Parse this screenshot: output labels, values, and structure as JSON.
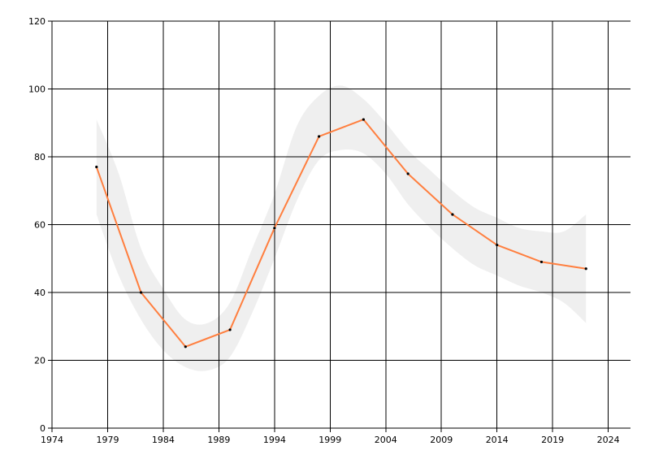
{
  "chart_data": {
    "type": "line",
    "title": "",
    "xlabel": "",
    "ylabel": "",
    "xlim": [
      1974,
      2026
    ],
    "ylim": [
      0,
      120
    ],
    "x_ticks": [
      1974,
      1979,
      1984,
      1989,
      1994,
      1999,
      2004,
      2009,
      2014,
      2019,
      2024
    ],
    "x_tick_labels": [
      "1974",
      "1979",
      "1984",
      "1989",
      "1994",
      "1999",
      "2004",
      "2009",
      "2014",
      "2019",
      "2024"
    ],
    "y_ticks": [
      0,
      20,
      40,
      60,
      80,
      100,
      120
    ],
    "y_tick_labels": [
      "0",
      "20",
      "40",
      "60",
      "80",
      "100",
      "120"
    ],
    "grid": true,
    "legend": "none",
    "series": [
      {
        "x": [
          1978,
          1982,
          1986,
          1990,
          1994,
          1998,
          2002,
          2006,
          2010,
          2014,
          2018,
          2022
        ],
        "values": [
          77,
          40,
          24,
          29,
          59,
          86,
          91,
          75,
          63,
          54,
          49,
          47
        ],
        "color": "#ff7f3f"
      }
    ],
    "band": {
      "x": [
        1978,
        1980,
        1982,
        1984,
        1986,
        1988,
        1990,
        1992,
        1994,
        1996,
        1998,
        2000,
        2002,
        2004,
        2006,
        2008,
        2010,
        2012,
        2014,
        2016,
        2018,
        2020,
        2022
      ],
      "lower": [
        63,
        45,
        32,
        23,
        18,
        17,
        21,
        34,
        50,
        67,
        79,
        82,
        81,
        75,
        66,
        59,
        53,
        48,
        45,
        42,
        40,
        37,
        31
      ],
      "upper": [
        91,
        75,
        53,
        41,
        32,
        31,
        37,
        53,
        69,
        89,
        98,
        101,
        97,
        90,
        82,
        76,
        70,
        65,
        62,
        59,
        58,
        58,
        63
      ],
      "color": "#efefef"
    }
  }
}
